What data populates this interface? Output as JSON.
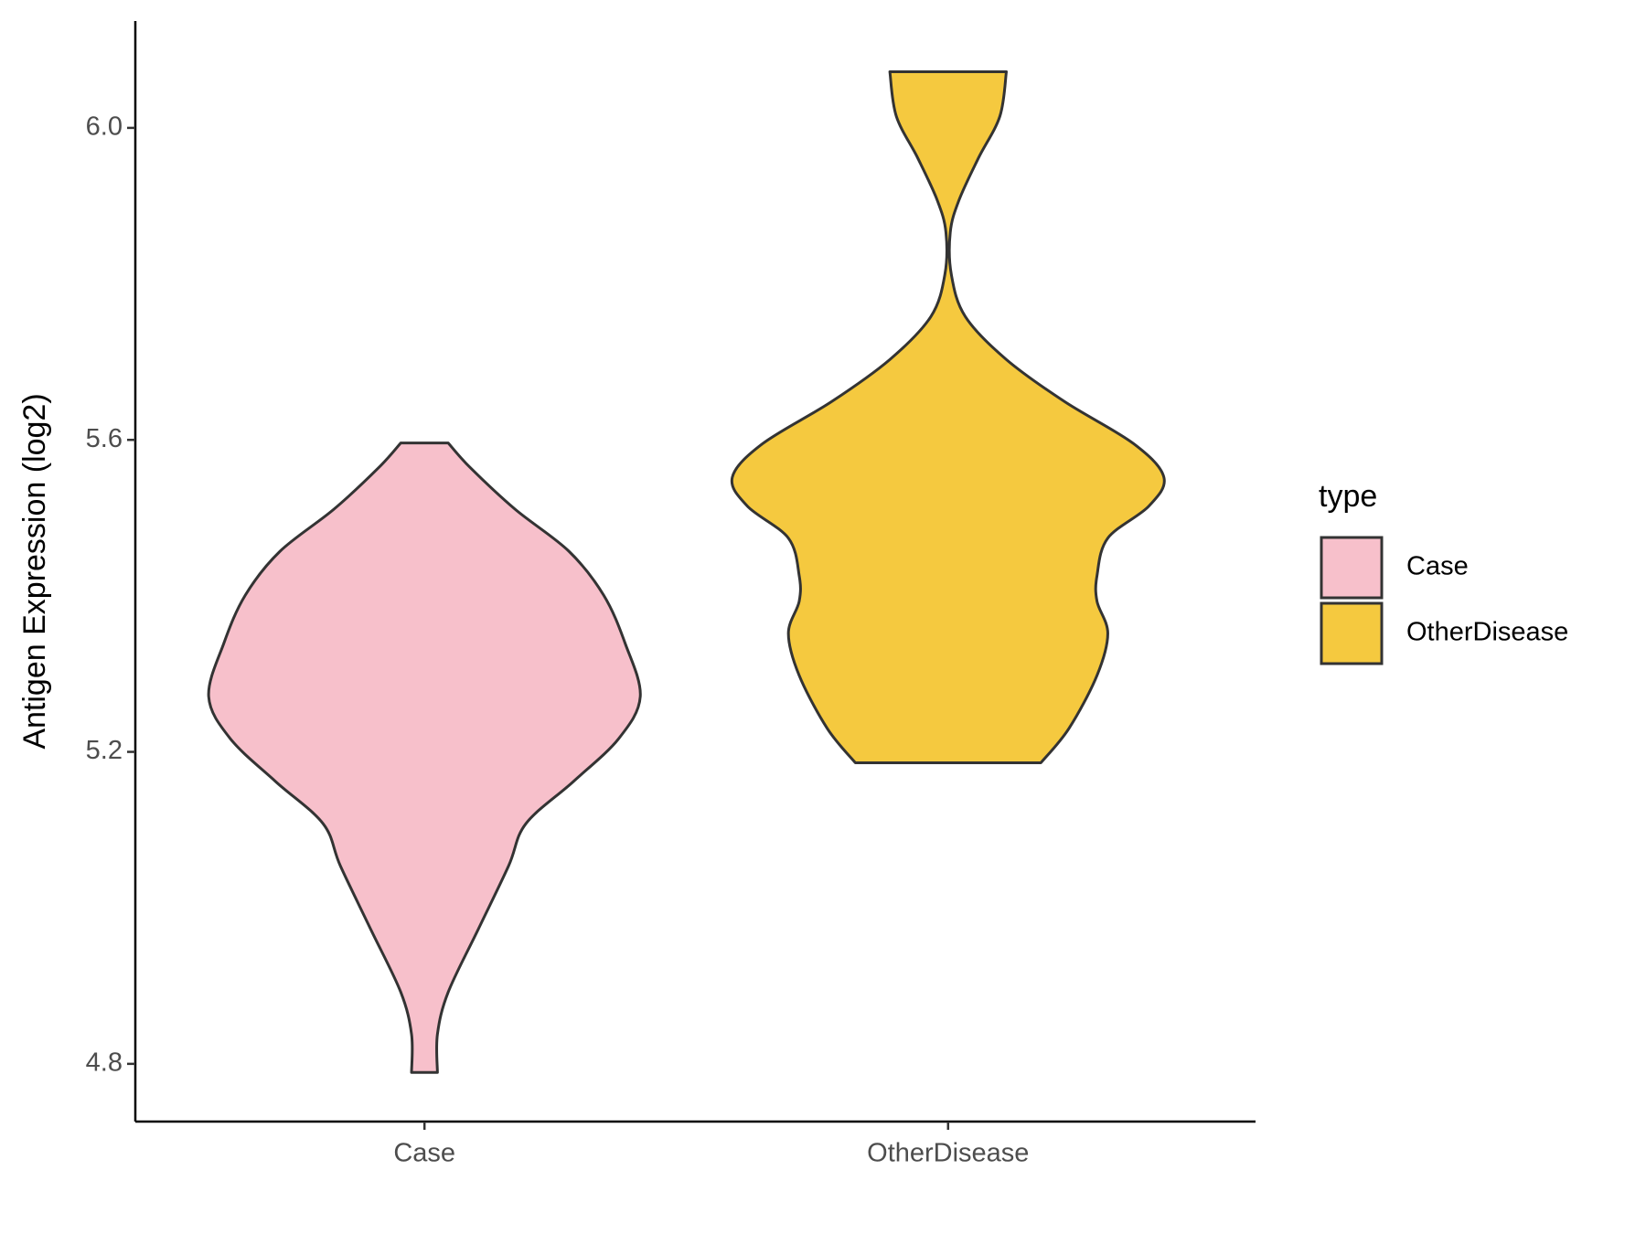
{
  "chart_data": {
    "type": "violin",
    "y_label": "Antigen Expression (log2)",
    "categories": [
      "Case",
      "OtherDisease"
    ],
    "legend_title": "type",
    "legend_position": "right",
    "ylim": [
      4.726,
      6.137
    ],
    "yticks": [
      4.8,
      5.2,
      5.6,
      {
        "value": 6,
        "label": "6.0"
      }
    ],
    "series": [
      {
        "name": "Case",
        "color": "#f7c0cb",
        "y": [
          4.789,
          4.838,
          4.892,
          4.973,
          5.054,
          5.108,
          5.162,
          5.217,
          5.271,
          5.339,
          5.401,
          5.457,
          5.511,
          5.565,
          5.596
        ],
        "density": [
          0.06,
          0.06,
          0.11,
          0.25,
          0.39,
          0.47,
          0.69,
          0.9,
          1.0,
          0.93,
          0.83,
          0.67,
          0.42,
          0.21,
          0.11
        ]
      },
      {
        "name": "OtherDisease",
        "color": "#f5c93f",
        "y": [
          5.186,
          5.23,
          5.298,
          5.352,
          5.393,
          5.426,
          5.474,
          5.515,
          5.552,
          5.595,
          5.649,
          5.703,
          5.758,
          5.812,
          5.866,
          5.907,
          5.961,
          6.015,
          6.072
        ],
        "density": [
          0.43,
          0.56,
          0.69,
          0.74,
          0.69,
          0.69,
          0.74,
          0.93,
          1.0,
          0.86,
          0.54,
          0.27,
          0.08,
          0.015,
          0.01,
          0.05,
          0.14,
          0.24,
          0.27
        ]
      }
    ]
  }
}
